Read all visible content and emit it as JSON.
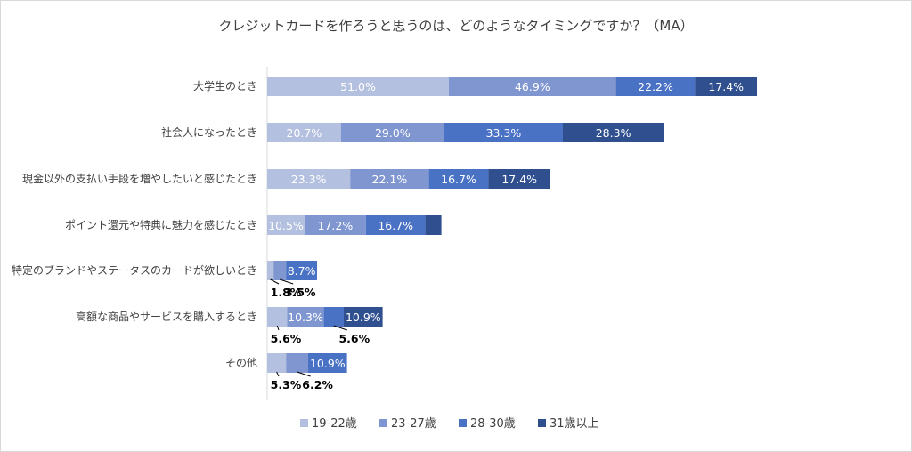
{
  "chart_data": {
    "type": "bar",
    "orientation": "horizontal",
    "stacked": true,
    "title": "クレジットカードを作ろうと思うのは、どのようなタイミングですか？（MA）",
    "categories": [
      "大学生のとき",
      "社会人になったとき",
      "現金以外の支払い手段を増やしたいと感じたとき",
      "ポイント還元や特典に魅力を感じたとき",
      "特定のブランドやステータスのカードが欲しいとき",
      "高額な商品やサービスを購入するとき",
      "その他"
    ],
    "series": [
      {
        "name": "19-22歳",
        "color": "#b4c0e0",
        "values": [
          51.0,
          20.7,
          23.3,
          10.5,
          1.8,
          5.6,
          5.3
        ],
        "labels": [
          "51.0%",
          "20.7%",
          "23.3%",
          "10.5%",
          "1.8%",
          "5.6%",
          "5.3%"
        ]
      },
      {
        "name": "23-27歳",
        "color": "#8096d0",
        "values": [
          46.9,
          29.0,
          22.1,
          17.2,
          3.5,
          10.3,
          6.2
        ],
        "labels": [
          "46.9%",
          "29.0%",
          "22.1%",
          "17.2%",
          "3.5%",
          "10.3%",
          "6.2%"
        ]
      },
      {
        "name": "28-30歳",
        "color": "#4a72c4",
        "values": [
          22.2,
          33.3,
          16.7,
          16.7,
          8.7,
          5.6,
          10.9
        ],
        "labels": [
          "22.2%",
          "33.3%",
          "16.7%",
          "16.7%",
          "8.7%",
          "5.6%",
          "10.9%"
        ]
      },
      {
        "name": "31歳以上",
        "color": "#2f4f8f",
        "values": [
          17.4,
          28.3,
          17.4,
          4.5,
          0,
          10.9,
          0
        ],
        "labels": [
          "17.4%",
          "28.3%",
          "17.4%",
          "",
          "",
          "10.9%",
          ""
        ]
      }
    ],
    "legend_position": "bottom",
    "grid": false
  }
}
